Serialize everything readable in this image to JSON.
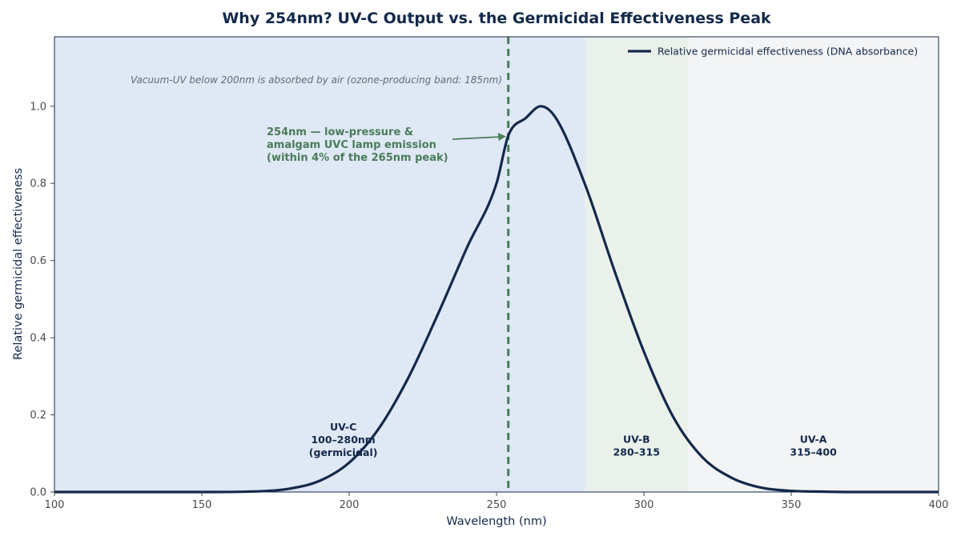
{
  "chart_data": {
    "type": "line",
    "title": "Why 254nm? UV-C Output vs. the Germicidal Effectiveness Peak",
    "xlabel": "Wavelength (nm)",
    "ylabel": "Relative germicidal effectiveness",
    "xlim": [
      100,
      400
    ],
    "ylim": [
      0,
      1.18
    ],
    "x_ticks": [
      100,
      150,
      200,
      250,
      300,
      350,
      400
    ],
    "x_tick_labels": [
      "100",
      "150",
      "200",
      "250",
      "300",
      "350",
      "400"
    ],
    "y_ticks": [
      0.0,
      0.2,
      0.4,
      0.6,
      0.8,
      1.0
    ],
    "y_tick_labels": [
      "0.0",
      "0.2",
      "0.4",
      "0.6",
      "0.8",
      "1.0"
    ],
    "grid": false,
    "legend_position": "top-right",
    "series": [
      {
        "name": "Relative germicidal effectiveness (DNA absorbance)",
        "color": "#13294b",
        "x": [
          100,
          150,
          170,
          180,
          190,
          200,
          210,
          220,
          230,
          240,
          250,
          254,
          260,
          265,
          270,
          280,
          290,
          300,
          310,
          320,
          330,
          340,
          350,
          360,
          370,
          380,
          400
        ],
        "y": [
          0.0,
          0.0,
          0.002,
          0.009,
          0.029,
          0.076,
          0.164,
          0.295,
          0.459,
          0.634,
          0.8,
          0.924,
          0.97,
          1.0,
          0.971,
          0.798,
          0.574,
          0.364,
          0.194,
          0.089,
          0.036,
          0.011,
          0.003,
          0.001,
          0.0,
          0.0,
          0.0
        ]
      }
    ],
    "bands": [
      {
        "id": "uvc",
        "x_start": 100,
        "x_end": 280,
        "color": "#dfe8f5",
        "label_lines": [
          "UV-C",
          "100–280nm",
          "(germicidal)"
        ],
        "label_x": 198,
        "label_y": 0.16
      },
      {
        "id": "uvb",
        "x_start": 280,
        "x_end": 315,
        "color": "#eaf1ea",
        "label_lines": [
          "UV-B",
          "280–315"
        ],
        "label_x": 297.5,
        "label_y": 0.128
      },
      {
        "id": "uva",
        "x_start": 315,
        "x_end": 400,
        "color": "#f3f4f5",
        "label_lines": [
          "UV-A",
          "315–400"
        ],
        "label_x": 357.5,
        "label_y": 0.128
      }
    ],
    "vline": {
      "x": 254,
      "color": "#4a7c59",
      "style": "dashed"
    },
    "annotations": {
      "vacuum_uv_note": "Vacuum-UV below 200nm is absorbed by air (ozone-producing band: 185nm)",
      "lamp_note_lines": [
        "254nm — low-pressure &",
        "amalgam UVC lamp emission",
        "(within 4% of the 265nm peak)"
      ],
      "lamp_arrow_target": {
        "x": 254,
        "y": 0.924
      }
    }
  }
}
